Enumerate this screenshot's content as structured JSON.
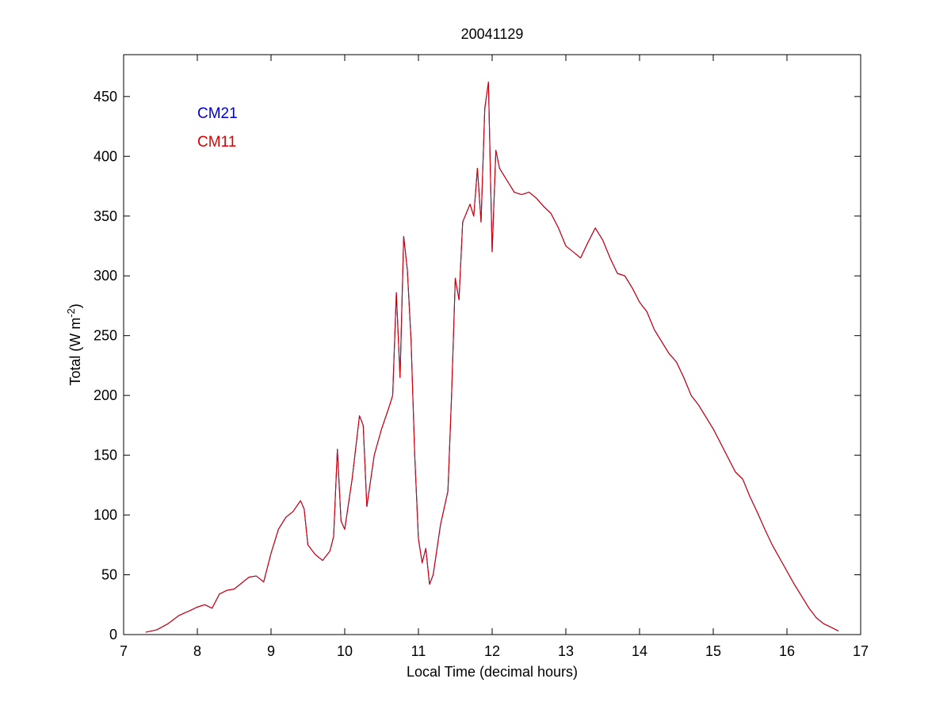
{
  "colors": {
    "background": "#ffffff",
    "axes": "#000000",
    "cm21": "#0000cc",
    "cm11": "#dd0000"
  },
  "chart_data": {
    "type": "line",
    "title": "20041129",
    "xlabel": "Local Time (decimal hours)",
    "ylabel": {
      "prefix": "Total (W m",
      "superscript": "-2",
      "suffix": ")"
    },
    "xlim": [
      7,
      17
    ],
    "ylim": [
      0,
      485
    ],
    "xticks": [
      7,
      8,
      9,
      10,
      11,
      12,
      13,
      14,
      15,
      16,
      17
    ],
    "yticks": [
      0,
      50,
      100,
      150,
      200,
      250,
      300,
      350,
      400,
      450
    ],
    "grid": false,
    "legend": {
      "placement": "top-left",
      "style": "colored text labels"
    },
    "series": [
      {
        "name": "CM21",
        "color": "#0000cc",
        "x": [
          7.3,
          7.45,
          7.6,
          7.75,
          7.9,
          8.0,
          8.1,
          8.2,
          8.3,
          8.4,
          8.5,
          8.6,
          8.7,
          8.8,
          8.9,
          9.0,
          9.1,
          9.2,
          9.3,
          9.4,
          9.45,
          9.5,
          9.6,
          9.7,
          9.8,
          9.85,
          9.9,
          9.95,
          10.0,
          10.1,
          10.2,
          10.25,
          10.3,
          10.4,
          10.5,
          10.6,
          10.65,
          10.7,
          10.75,
          10.8,
          10.85,
          10.9,
          10.95,
          11.0,
          11.05,
          11.1,
          11.15,
          11.2,
          11.3,
          11.4,
          11.45,
          11.5,
          11.55,
          11.6,
          11.7,
          11.75,
          11.8,
          11.85,
          11.9,
          11.95,
          12.0,
          12.05,
          12.1,
          12.2,
          12.3,
          12.4,
          12.5,
          12.6,
          12.7,
          12.8,
          12.9,
          13.0,
          13.1,
          13.2,
          13.3,
          13.4,
          13.45,
          13.5,
          13.6,
          13.7,
          13.8,
          13.9,
          14.0,
          14.1,
          14.2,
          14.3,
          14.4,
          14.5,
          14.6,
          14.7,
          14.8,
          14.9,
          15.0,
          15.1,
          15.2,
          15.3,
          15.4,
          15.5,
          15.6,
          15.7,
          15.8,
          15.9,
          16.0,
          16.1,
          16.2,
          16.3,
          16.4,
          16.5,
          16.6,
          16.7
        ],
        "y": [
          2,
          4,
          9,
          16,
          20,
          23,
          25,
          22,
          34,
          37,
          38,
          43,
          48,
          49,
          44,
          68,
          88,
          98,
          103,
          112,
          105,
          75,
          67,
          62,
          70,
          82,
          155,
          95,
          88,
          130,
          183,
          175,
          107,
          150,
          172,
          190,
          200,
          286,
          215,
          333,
          305,
          246,
          150,
          80,
          60,
          72,
          42,
          50,
          92,
          120,
          200,
          298,
          280,
          345,
          360,
          350,
          390,
          345,
          440,
          462,
          320,
          405,
          390,
          380,
          370,
          368,
          370,
          365,
          358,
          352,
          340,
          325,
          320,
          315,
          328,
          340,
          335,
          330,
          315,
          302,
          300,
          290,
          278,
          270,
          255,
          245,
          235,
          228,
          215,
          200,
          192,
          182,
          172,
          160,
          148,
          136,
          130,
          115,
          102,
          88,
          75,
          64,
          53,
          42,
          32,
          22,
          14,
          9,
          6,
          3
        ]
      },
      {
        "name": "CM11",
        "color": "#dd0000",
        "x": [
          7.3,
          7.45,
          7.6,
          7.75,
          7.9,
          8.0,
          8.1,
          8.2,
          8.3,
          8.4,
          8.5,
          8.6,
          8.7,
          8.8,
          8.9,
          9.0,
          9.1,
          9.2,
          9.3,
          9.4,
          9.45,
          9.5,
          9.6,
          9.7,
          9.8,
          9.85,
          9.9,
          9.95,
          10.0,
          10.1,
          10.2,
          10.25,
          10.3,
          10.4,
          10.5,
          10.6,
          10.65,
          10.7,
          10.75,
          10.8,
          10.85,
          10.9,
          10.95,
          11.0,
          11.05,
          11.1,
          11.15,
          11.2,
          11.3,
          11.4,
          11.45,
          11.5,
          11.55,
          11.6,
          11.7,
          11.75,
          11.8,
          11.85,
          11.9,
          11.95,
          12.0,
          12.05,
          12.1,
          12.2,
          12.3,
          12.4,
          12.5,
          12.6,
          12.7,
          12.8,
          12.9,
          13.0,
          13.1,
          13.2,
          13.3,
          13.4,
          13.45,
          13.5,
          13.6,
          13.7,
          13.8,
          13.9,
          14.0,
          14.1,
          14.2,
          14.3,
          14.4,
          14.5,
          14.6,
          14.7,
          14.8,
          14.9,
          15.0,
          15.1,
          15.2,
          15.3,
          15.4,
          15.5,
          15.6,
          15.7,
          15.8,
          15.9,
          16.0,
          16.1,
          16.2,
          16.3,
          16.4,
          16.5,
          16.6,
          16.7
        ],
        "y": [
          2,
          4,
          9,
          16,
          20,
          23,
          25,
          22,
          34,
          37,
          38,
          43,
          48,
          49,
          44,
          68,
          88,
          98,
          103,
          112,
          105,
          75,
          67,
          62,
          70,
          82,
          155,
          95,
          88,
          130,
          183,
          175,
          107,
          150,
          172,
          190,
          200,
          286,
          215,
          333,
          305,
          246,
          150,
          80,
          60,
          72,
          42,
          50,
          92,
          120,
          200,
          298,
          280,
          345,
          360,
          350,
          390,
          345,
          440,
          462,
          320,
          405,
          390,
          380,
          370,
          368,
          370,
          365,
          358,
          352,
          340,
          325,
          320,
          315,
          328,
          340,
          335,
          330,
          315,
          302,
          300,
          290,
          278,
          270,
          255,
          245,
          235,
          228,
          215,
          200,
          192,
          182,
          172,
          160,
          148,
          136,
          130,
          115,
          102,
          88,
          75,
          64,
          53,
          42,
          32,
          22,
          14,
          9,
          6,
          3
        ]
      }
    ]
  }
}
